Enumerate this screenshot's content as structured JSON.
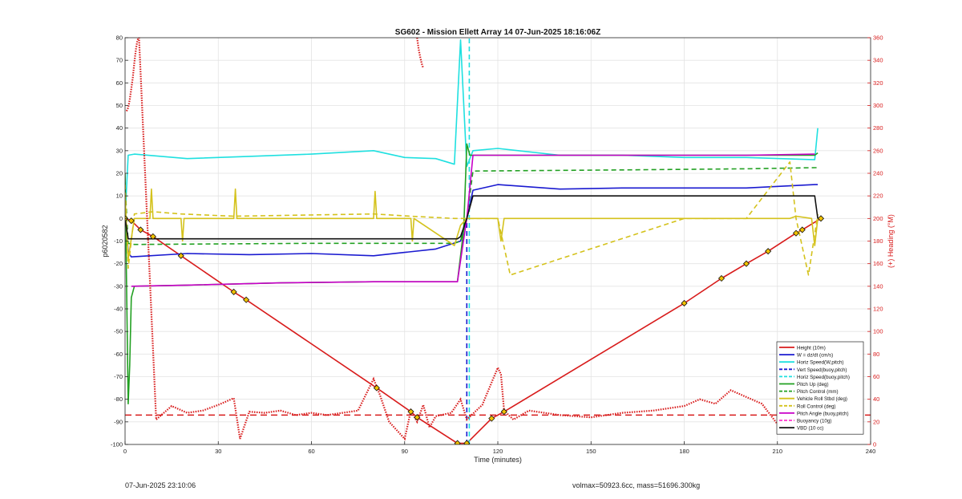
{
  "footer": {
    "timestamp": "07-Jun-2025 23:10:06",
    "mass_info": "volmax=50923.6cc, mass=51696.300kg"
  },
  "chart_data": {
    "type": "line",
    "title": "SG602 - Mission Ellett Array 14 07-Jun-2025 18:16:06Z",
    "xlabel": "Time (minutes)",
    "ylabel": "p6020582",
    "y2label": "(+) Heading (°M)",
    "xlim": [
      0,
      240
    ],
    "ylim": [
      -100,
      80
    ],
    "y2lim": [
      0,
      360
    ],
    "xticks": [
      0,
      30,
      60,
      90,
      120,
      150,
      180,
      210,
      240
    ],
    "yticks": [
      -100,
      -90,
      -80,
      -70,
      -60,
      -50,
      -40,
      -30,
      -20,
      -10,
      0,
      10,
      20,
      30,
      40,
      50,
      60,
      70,
      80
    ],
    "y2ticks": [
      0,
      20,
      40,
      60,
      80,
      100,
      120,
      140,
      160,
      180,
      200,
      220,
      240,
      260,
      280,
      300,
      320,
      340,
      360
    ],
    "grid": true,
    "legend_position": "bottom-right",
    "series": [
      {
        "name": "Height (10m)",
        "color": "#d81b1b",
        "style": "solid",
        "marker": "diamond",
        "x": [
          0,
          2,
          5,
          9,
          18,
          35,
          39,
          81,
          92,
          94,
          107,
          110,
          118,
          122,
          180,
          192,
          200,
          207,
          216,
          218,
          224
        ],
        "y": [
          0,
          -1,
          -5,
          -8,
          -16.5,
          -32.5,
          -36,
          -75,
          -85.5,
          -88,
          -99.5,
          -99.5,
          -88.5,
          -85.5,
          -37.5,
          -26.5,
          -20,
          -14.5,
          -6.5,
          -5,
          0
        ]
      },
      {
        "name": "W = dz/dt (cm/s)",
        "color": "#1a1ad0",
        "style": "solid",
        "x": [
          0,
          1,
          2,
          20,
          40,
          60,
          80,
          90,
          100,
          108,
          110,
          112,
          120,
          140,
          160,
          180,
          200,
          222,
          223
        ],
        "y": [
          5,
          -15,
          -17,
          -15.5,
          -16,
          -15.5,
          -16.5,
          -15,
          -13.5,
          -10,
          0,
          12.5,
          15,
          13,
          13.5,
          13.5,
          13.5,
          15,
          15
        ]
      },
      {
        "name": "Horiz Speed(W,pitch)",
        "color": "#1fe0e0",
        "style": "solid",
        "x": [
          0,
          1,
          3,
          20,
          40,
          60,
          80,
          90,
          100,
          106,
          108,
          110,
          112,
          120,
          140,
          160,
          180,
          200,
          222,
          223
        ],
        "y": [
          0,
          28,
          28.5,
          26.5,
          27.5,
          28.5,
          30,
          27,
          26.5,
          24,
          79,
          23,
          30,
          31,
          28,
          28,
          27,
          27,
          26,
          40
        ]
      },
      {
        "name": "Vert Speed(buoy,pitch)",
        "color": "#1a1ad0",
        "style": "dashed",
        "x": [
          110,
          110
        ],
        "y": [
          -100,
          0
        ]
      },
      {
        "name": "Horiz Speed(buoy,pitch)",
        "color": "#1fe0e0",
        "style": "dashed",
        "x": [
          110.8,
          110.8
        ],
        "y": [
          -100,
          80
        ]
      },
      {
        "name": "Pitch Up (deg)",
        "color": "#22a022",
        "style": "solid",
        "x": [
          0,
          1,
          1.5,
          2,
          3,
          20,
          50,
          80,
          100,
          107,
          109,
          110,
          111,
          120,
          160,
          200,
          222,
          223
        ],
        "y": [
          20,
          -82,
          -65,
          -35,
          -30,
          -29.5,
          -28.5,
          -28,
          -28,
          -28,
          -5,
          33,
          28,
          28,
          28,
          28,
          28,
          29
        ]
      },
      {
        "name": "Pitch Control (mm)",
        "color": "#22a022",
        "style": "dashed",
        "x": [
          0,
          1,
          3,
          60,
          106,
          108,
          110,
          112,
          160,
          200,
          222,
          223
        ],
        "y": [
          15,
          -11,
          -11.5,
          -11,
          -11,
          -10,
          0,
          21,
          21.5,
          22,
          22.5,
          22.5
        ]
      },
      {
        "name": "Vehicle Roll Stbd (deg)",
        "color": "#d4c21c",
        "style": "solid",
        "x": [
          0,
          1,
          3,
          8,
          8.5,
          9,
          18,
          18.5,
          19,
          35,
          35.5,
          36,
          80,
          80.5,
          81,
          92,
          92.5,
          93,
          106,
          108,
          110,
          120,
          121,
          122,
          180,
          194,
          200,
          208,
          214,
          216,
          221,
          222,
          223
        ],
        "y": [
          10,
          -18,
          0,
          0,
          13,
          0,
          0,
          -10,
          0,
          0,
          13,
          0,
          0,
          12,
          0,
          0,
          -10,
          0,
          -12,
          -3,
          0,
          0,
          -10,
          0,
          0,
          0,
          0,
          0,
          0,
          1,
          0,
          -12,
          0
        ]
      },
      {
        "name": "Roll Control (deg)",
        "color": "#d4c21c",
        "style": "dashed",
        "x": [
          0,
          1,
          3,
          9,
          18,
          35,
          80,
          92,
          106,
          110,
          120,
          124,
          180,
          200,
          214,
          216,
          220,
          223
        ],
        "y": [
          15,
          -22,
          2,
          3,
          2,
          1,
          2,
          1,
          0,
          0,
          0,
          -25,
          0,
          0,
          25,
          0,
          -25,
          2
        ]
      },
      {
        "name": "Pitch Angle (buoy,pitch)",
        "color": "#c800c8",
        "style": "solid",
        "x": [
          2,
          20,
          50,
          80,
          100,
          107,
          110,
          112,
          160,
          200,
          222
        ],
        "y": [
          -30,
          -29.5,
          -28.5,
          -28,
          -28,
          -28,
          0,
          28,
          28,
          28,
          28.5
        ]
      },
      {
        "name": "Buoyancy (10g)",
        "color": "#ff33cc",
        "style": "dashed",
        "x": [],
        "y": []
      },
      {
        "name": "VBD (10 cc)",
        "color": "#111111",
        "style": "solid",
        "x": [
          0,
          1,
          107,
          108,
          110,
          112,
          222,
          223
        ],
        "y": [
          0,
          -9,
          -9,
          -8,
          0,
          10,
          10,
          0
        ]
      }
    ],
    "heading": {
      "axis": "right",
      "color": "#d81b1b",
      "mean_line": 26,
      "x": [
        0.5,
        1,
        1.5,
        2,
        2.5,
        3,
        3.5,
        4,
        4.5,
        10,
        15,
        20,
        25,
        30,
        35,
        37,
        40,
        45,
        50,
        55,
        60,
        65,
        70,
        75,
        80,
        82,
        85,
        90,
        92,
        94,
        96,
        98,
        100,
        105,
        108,
        110,
        115,
        120,
        121,
        122,
        125,
        130,
        140,
        150,
        160,
        170,
        180,
        185,
        190,
        195,
        200,
        205,
        210,
        212,
        215,
        218,
        220,
        222
      ],
      "y": [
        295,
        298,
        305,
        315,
        325,
        338,
        350,
        358,
        360,
        22,
        34,
        28,
        30,
        35,
        41,
        5,
        29,
        28,
        30,
        26,
        28,
        26,
        28,
        30,
        58,
        44,
        20,
        5,
        30,
        20,
        35,
        15,
        25,
        28,
        40,
        22,
        35,
        68,
        62,
        30,
        22,
        30,
        26,
        24,
        28,
        30,
        34,
        40,
        36,
        48,
        42,
        36,
        18,
        30,
        36,
        40,
        58,
        55
      ]
    },
    "heading_top": {
      "x": [
        94,
        94.5,
        95,
        95.5,
        96
      ],
      "y": [
        360,
        350,
        343,
        337,
        333
      ]
    }
  }
}
